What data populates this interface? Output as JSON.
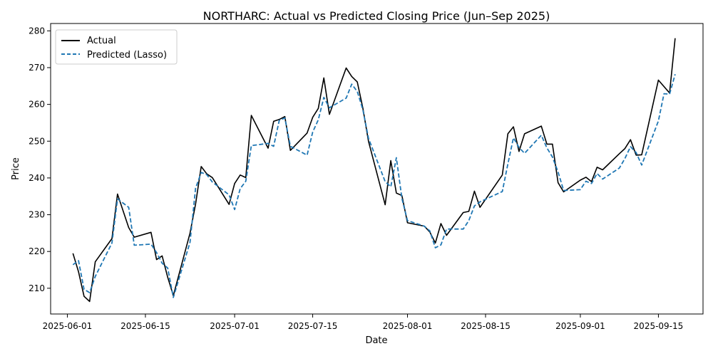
{
  "chart_data": {
    "type": "line",
    "title": "NORTHARC: Actual vs Predicted Closing Price (Jun–Sep 2025)",
    "xlabel": "Date",
    "ylabel": "Price",
    "xlim": [
      "2025-05-29",
      "2025-09-23"
    ],
    "ylim": [
      203,
      282
    ],
    "x_ticks": [
      "2025-06-01",
      "2025-06-15",
      "2025-07-01",
      "2025-07-15",
      "2025-08-01",
      "2025-08-15",
      "2025-09-01",
      "2025-09-15"
    ],
    "y_ticks": [
      210,
      220,
      230,
      240,
      250,
      260,
      270,
      280
    ],
    "grid": false,
    "legend_position": "top-left",
    "series": [
      {
        "name": "Actual",
        "color": "#000000",
        "style": "solid",
        "points": [
          [
            "2025-06-02",
            219.5
          ],
          [
            "2025-06-03",
            214.5
          ],
          [
            "2025-06-04",
            207.8
          ],
          [
            "2025-06-05",
            206.4
          ],
          [
            "2025-06-06",
            217.2
          ],
          [
            "2025-06-09",
            223.5
          ],
          [
            "2025-06-10",
            235.6
          ],
          [
            "2025-06-12",
            226.5
          ],
          [
            "2025-06-13",
            223.9
          ],
          [
            "2025-06-16",
            225.2
          ],
          [
            "2025-06-17",
            217.8
          ],
          [
            "2025-06-18",
            218.8
          ],
          [
            "2025-06-19",
            213.0
          ],
          [
            "2025-06-20",
            208.0
          ],
          [
            "2025-06-23",
            225.0
          ],
          [
            "2025-06-24",
            232.9
          ],
          [
            "2025-06-25",
            243.1
          ],
          [
            "2025-06-26",
            241.1
          ],
          [
            "2025-06-27",
            240.1
          ],
          [
            "2025-06-30",
            232.8
          ],
          [
            "2025-07-01",
            238.5
          ],
          [
            "2025-07-02",
            240.8
          ],
          [
            "2025-07-03",
            240.1
          ],
          [
            "2025-07-04",
            257.0
          ],
          [
            "2025-07-07",
            248.1
          ],
          [
            "2025-07-08",
            255.4
          ],
          [
            "2025-07-09",
            255.9
          ],
          [
            "2025-07-10",
            256.7
          ],
          [
            "2025-07-11",
            247.5
          ],
          [
            "2025-07-14",
            252.2
          ],
          [
            "2025-07-15",
            256.5
          ],
          [
            "2025-07-16",
            258.9
          ],
          [
            "2025-07-17",
            267.2
          ],
          [
            "2025-07-18",
            257.3
          ],
          [
            "2025-07-21",
            269.9
          ],
          [
            "2025-07-22",
            267.6
          ],
          [
            "2025-07-23",
            266.1
          ],
          [
            "2025-07-24",
            259.0
          ],
          [
            "2025-07-25",
            250.0
          ],
          [
            "2025-07-28",
            232.7
          ],
          [
            "2025-07-29",
            244.7
          ],
          [
            "2025-07-30",
            235.9
          ],
          [
            "2025-07-31",
            235.2
          ],
          [
            "2025-08-01",
            227.8
          ],
          [
            "2025-08-04",
            226.9
          ],
          [
            "2025-08-05",
            225.3
          ],
          [
            "2025-08-06",
            222.3
          ],
          [
            "2025-08-07",
            227.6
          ],
          [
            "2025-08-08",
            224.4
          ],
          [
            "2025-08-11",
            230.6
          ],
          [
            "2025-08-12",
            230.9
          ],
          [
            "2025-08-13",
            236.4
          ],
          [
            "2025-08-14",
            232.0
          ],
          [
            "2025-08-18",
            240.8
          ],
          [
            "2025-08-19",
            252.0
          ],
          [
            "2025-08-20",
            253.9
          ],
          [
            "2025-08-21",
            247.2
          ],
          [
            "2025-08-22",
            252.0
          ],
          [
            "2025-08-25",
            254.1
          ],
          [
            "2025-08-26",
            249.2
          ],
          [
            "2025-08-27",
            249.2
          ],
          [
            "2025-08-28",
            238.7
          ],
          [
            "2025-08-29",
            236.2
          ],
          [
            "2025-09-01",
            239.4
          ],
          [
            "2025-09-02",
            240.2
          ],
          [
            "2025-09-03",
            239.0
          ],
          [
            "2025-09-04",
            242.9
          ],
          [
            "2025-09-05",
            242.2
          ],
          [
            "2025-09-08",
            246.6
          ],
          [
            "2025-09-09",
            248.0
          ],
          [
            "2025-09-10",
            250.4
          ],
          [
            "2025-09-11",
            246.2
          ],
          [
            "2025-09-12",
            246.3
          ],
          [
            "2025-09-15",
            266.6
          ],
          [
            "2025-09-17",
            263.1
          ],
          [
            "2025-09-18",
            278.0
          ]
        ]
      },
      {
        "name": "Predicted (Lasso)",
        "color": "#1f77b4",
        "style": "dashed",
        "points": [
          [
            "2025-06-02",
            216.4
          ],
          [
            "2025-06-03",
            217.5
          ],
          [
            "2025-06-04",
            209.7
          ],
          [
            "2025-06-05",
            208.8
          ],
          [
            "2025-06-06",
            213.2
          ],
          [
            "2025-06-09",
            222.3
          ],
          [
            "2025-06-10",
            234.3
          ],
          [
            "2025-06-12",
            232.0
          ],
          [
            "2025-06-13",
            221.7
          ],
          [
            "2025-06-16",
            222.0
          ],
          [
            "2025-06-17",
            219.7
          ],
          [
            "2025-06-18",
            216.8
          ],
          [
            "2025-06-19",
            215.5
          ],
          [
            "2025-06-20",
            207.5
          ],
          [
            "2025-06-23",
            222.5
          ],
          [
            "2025-06-24",
            237.2
          ],
          [
            "2025-06-25",
            241.5
          ],
          [
            "2025-06-26",
            240.9
          ],
          [
            "2025-06-27",
            238.9
          ],
          [
            "2025-06-30",
            235.4
          ],
          [
            "2025-07-01",
            231.4
          ],
          [
            "2025-07-02",
            237.1
          ],
          [
            "2025-07-03",
            239.1
          ],
          [
            "2025-07-04",
            248.8
          ],
          [
            "2025-07-07",
            249.4
          ],
          [
            "2025-07-08",
            248.6
          ],
          [
            "2025-07-09",
            255.6
          ],
          [
            "2025-07-10",
            256.3
          ],
          [
            "2025-07-11",
            248.6
          ],
          [
            "2025-07-14",
            246.2
          ],
          [
            "2025-07-15",
            252.5
          ],
          [
            "2025-07-16",
            255.8
          ],
          [
            "2025-07-17",
            261.9
          ],
          [
            "2025-07-18",
            259.1
          ],
          [
            "2025-07-21",
            261.7
          ],
          [
            "2025-07-22",
            265.5
          ],
          [
            "2025-07-23",
            263.5
          ],
          [
            "2025-07-24",
            258.6
          ],
          [
            "2025-07-25",
            250.8
          ],
          [
            "2025-07-28",
            239.0
          ],
          [
            "2025-07-29",
            237.6
          ],
          [
            "2025-07-30",
            245.5
          ],
          [
            "2025-07-31",
            234.4
          ],
          [
            "2025-08-01",
            228.4
          ],
          [
            "2025-08-04",
            226.9
          ],
          [
            "2025-08-05",
            225.6
          ],
          [
            "2025-08-06",
            221.0
          ],
          [
            "2025-08-07",
            221.8
          ],
          [
            "2025-08-08",
            226.1
          ],
          [
            "2025-08-11",
            226.1
          ],
          [
            "2025-08-12",
            228.4
          ],
          [
            "2025-08-13",
            232.4
          ],
          [
            "2025-08-14",
            233.5
          ],
          [
            "2025-08-18",
            236.3
          ],
          [
            "2025-08-19",
            243.8
          ],
          [
            "2025-08-20",
            250.9
          ],
          [
            "2025-08-21",
            248.3
          ],
          [
            "2025-08-22",
            246.7
          ],
          [
            "2025-08-25",
            251.6
          ],
          [
            "2025-08-26",
            248.2
          ],
          [
            "2025-08-27",
            245.7
          ],
          [
            "2025-08-28",
            241.6
          ],
          [
            "2025-08-29",
            236.6
          ],
          [
            "2025-09-01",
            236.8
          ],
          [
            "2025-09-02",
            239.1
          ],
          [
            "2025-09-03",
            238.5
          ],
          [
            "2025-09-04",
            241.2
          ],
          [
            "2025-09-05",
            239.7
          ],
          [
            "2025-09-08",
            242.7
          ],
          [
            "2025-09-09",
            245.3
          ],
          [
            "2025-09-10",
            248.5
          ],
          [
            "2025-09-11",
            246.9
          ],
          [
            "2025-09-12",
            243.5
          ],
          [
            "2025-09-15",
            255.5
          ],
          [
            "2025-09-16",
            262.9
          ],
          [
            "2025-09-17",
            262.8
          ],
          [
            "2025-09-18",
            268.2
          ]
        ]
      }
    ]
  }
}
